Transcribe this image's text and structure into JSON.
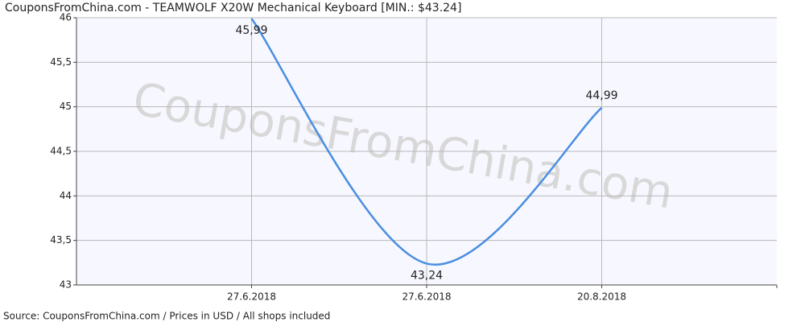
{
  "chart_data": {
    "type": "line",
    "title": "CouponsFromChina.com - TEAMWOLF X20W Mechanical Keyboard [MIN.: $43.24]",
    "watermark": "CouponsFromChina.com",
    "source": "Source: CouponsFromChina.com / Prices in USD / All shops included",
    "categories": [
      "27.6.2018",
      "27.6.2018",
      "20.8.2018"
    ],
    "series": [
      {
        "name": "Price",
        "color": "#4a8fe0",
        "values": [
          45.99,
          43.24,
          44.99
        ],
        "value_labels": [
          "45,99",
          "43,24",
          "44,99"
        ]
      }
    ],
    "ylim": [
      43,
      46
    ],
    "yticks": [
      43,
      {
        "value": 43.5,
        "label": "43,5"
      },
      44,
      {
        "value": 44.5,
        "label": "44,5"
      },
      45,
      {
        "value": 45.5,
        "label": "45,5"
      },
      46
    ],
    "grid": true
  }
}
